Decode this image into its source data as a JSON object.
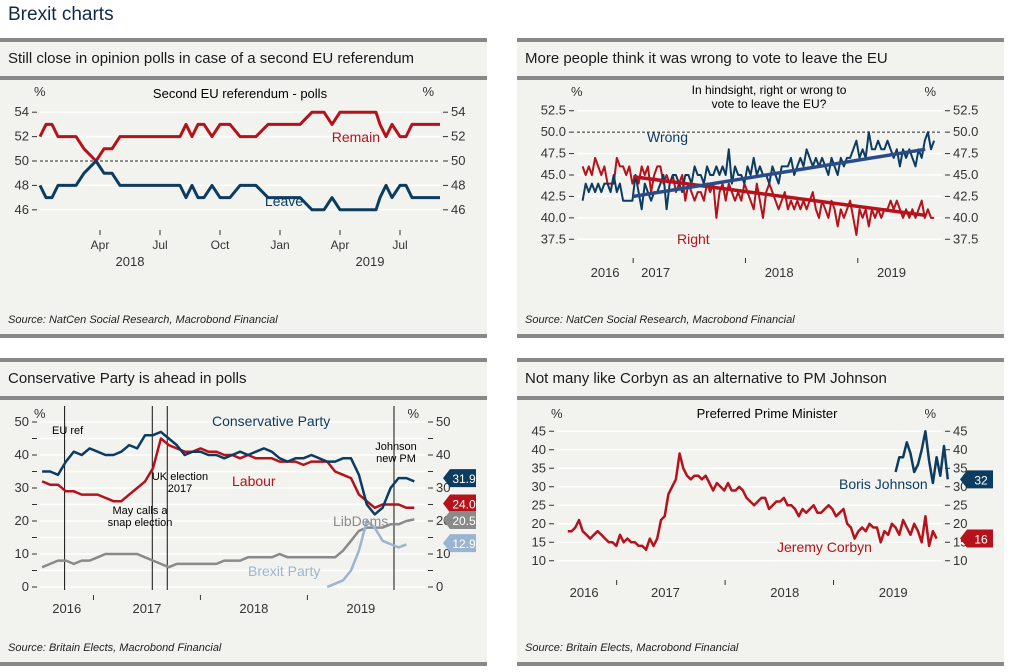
{
  "page": {
    "title": "Brexit charts"
  },
  "colors": {
    "navy": "#0d3c61",
    "red": "#b5121b",
    "gray": "#8a8a8a",
    "lightblue": "#9ab4d1",
    "bg": "#f2f2ef"
  },
  "panels": [
    {
      "heading": "Still close in opinion polls in case of a second EU referendum",
      "source": "Source: NatCen Social Research, Macrobond Financial"
    },
    {
      "heading": "More people think it was wrong to vote to leave the EU",
      "source": "Source: NatCen Social Research, Macrobond Financial"
    },
    {
      "heading": "Conservative Party is ahead in polls",
      "source": "Source: Britain Elects, Macrobond Financial"
    },
    {
      "heading": "Not many like Corbyn as an alternative to PM Johnson",
      "source": "Source: Britain Elects, Macrobond Financial"
    }
  ],
  "chart_data": [
    {
      "type": "line",
      "title": "Second EU referendum - polls",
      "ylabel_left": "%",
      "ylabel_right": "%",
      "ylim": [
        45,
        55
      ],
      "yticks": [
        46,
        48,
        50,
        52,
        54
      ],
      "xlim": [
        0,
        20
      ],
      "xticks": [
        {
          "x": 3,
          "label": "Apr"
        },
        {
          "x": 6,
          "label": "Jul"
        },
        {
          "x": 9,
          "label": "Oct"
        },
        {
          "x": 12,
          "label": "Jan"
        },
        {
          "x": 15,
          "label": "Apr"
        },
        {
          "x": 18,
          "label": "Jul"
        }
      ],
      "year_labels": [
        {
          "x": 4.5,
          "label": "2018"
        },
        {
          "x": 16.5,
          "label": "2019"
        }
      ],
      "reference_line": 50,
      "series": [
        {
          "name": "Remain",
          "color": "#b5121b",
          "x": [
            0,
            0.3,
            0.6,
            0.9,
            1.2,
            1.8,
            2.2,
            2.8,
            3.2,
            3.6,
            4.0,
            4.5,
            5,
            6,
            7,
            7.3,
            7.6,
            7.9,
            8.2,
            8.6,
            9,
            9.5,
            10,
            10.8,
            11.4,
            12,
            12.6,
            13,
            13.6,
            14.2,
            14.6,
            15,
            15.6,
            16.2,
            16.8,
            17,
            17.3,
            17.6,
            18,
            18.3,
            18.6,
            19,
            19.5,
            20
          ],
          "values": [
            52,
            53,
            53,
            52,
            52,
            52,
            51,
            50,
            51,
            51,
            52,
            52,
            52,
            52,
            52,
            53,
            52,
            53,
            53,
            52,
            53,
            53,
            52,
            52,
            53,
            53,
            53,
            53,
            54,
            54,
            53,
            54,
            54,
            54,
            54,
            53,
            52,
            53,
            52,
            52,
            53,
            53,
            53,
            53
          ]
        },
        {
          "name": "Leave",
          "color": "#0d3c61",
          "x": [
            0,
            0.3,
            0.6,
            0.9,
            1.2,
            1.8,
            2.2,
            2.8,
            3.2,
            3.6,
            4.0,
            4.5,
            5,
            6,
            7,
            7.3,
            7.6,
            7.9,
            8.2,
            8.6,
            9,
            9.5,
            10,
            10.8,
            11.4,
            12,
            12.6,
            13,
            13.6,
            14.2,
            14.6,
            15,
            15.6,
            16.2,
            16.8,
            17,
            17.3,
            17.6,
            18,
            18.3,
            18.6,
            19,
            19.5,
            20
          ],
          "values": [
            48,
            47,
            47,
            48,
            48,
            48,
            49,
            50,
            49,
            49,
            48,
            48,
            48,
            48,
            48,
            47,
            48,
            47,
            47,
            48,
            47,
            47,
            48,
            48,
            47,
            47,
            47,
            47,
            46,
            46,
            47,
            46,
            46,
            46,
            46,
            47,
            48,
            47,
            48,
            48,
            47,
            47,
            47,
            47
          ]
        }
      ]
    },
    {
      "type": "line",
      "title": "In hindsight, right or wrong to vote to leave the EU?",
      "ylabel_left": "%",
      "ylabel_right": "%",
      "ylim": [
        36.25,
        53.75
      ],
      "yticks": [
        37.5,
        40.0,
        42.5,
        45.0,
        47.5,
        50.0,
        52.5
      ],
      "xlim": [
        2016.5,
        2019.75
      ],
      "xticks": [
        2017.0,
        2018.0,
        2019.0
      ],
      "year_labels": [
        {
          "x": 2016.75,
          "label": "2016"
        },
        {
          "x": 2017.2,
          "label": "2017"
        },
        {
          "x": 2018.3,
          "label": "2018"
        },
        {
          "x": 2019.3,
          "label": "2019"
        }
      ],
      "reference_line": 50.0,
      "series": [
        {
          "name": "Wrong",
          "color": "#0d3c61",
          "values": [
            42,
            44,
            43,
            44,
            43,
            44,
            43,
            44,
            44,
            43,
            45,
            43,
            44,
            42,
            42,
            42,
            42,
            45,
            43,
            41,
            44,
            43,
            42,
            43,
            43,
            44,
            45,
            41,
            44,
            45,
            45,
            44,
            43,
            45,
            45,
            44,
            46,
            45,
            45,
            44,
            46,
            45,
            45,
            46,
            45,
            46,
            45,
            48,
            44,
            46,
            45,
            45,
            44,
            46,
            45,
            47,
            45,
            46,
            45,
            45,
            44,
            46,
            45,
            44,
            46,
            46,
            46,
            47,
            45,
            46,
            47,
            46,
            48,
            47,
            46,
            47,
            46,
            47,
            46,
            45,
            47,
            46,
            45,
            47,
            46,
            47,
            47,
            48,
            49,
            47,
            48,
            47,
            50,
            48,
            48,
            49,
            48,
            48,
            49,
            48,
            47,
            48,
            46,
            48,
            47,
            48,
            47,
            46,
            48,
            47,
            49,
            50,
            48,
            49
          ]
        },
        {
          "name": "Right",
          "color": "#b5121b",
          "values": [
            46,
            45,
            46,
            45,
            47,
            46,
            45,
            46,
            44,
            44,
            44,
            47,
            46,
            46,
            45,
            46,
            44,
            45,
            44,
            46,
            45,
            46,
            43,
            45,
            46,
            46,
            44,
            45,
            44,
            45,
            43,
            44,
            45,
            42,
            44,
            43,
            42,
            43,
            43,
            42,
            44,
            43,
            44,
            40,
            43,
            44,
            42,
            44,
            43,
            42,
            43,
            42,
            44,
            43,
            42,
            41,
            44,
            42,
            40,
            43,
            44,
            43,
            42,
            41,
            42,
            43,
            41,
            42,
            41,
            42,
            41,
            42,
            41,
            42,
            43,
            41,
            40,
            42,
            41,
            40,
            42,
            41,
            39,
            41,
            40,
            41,
            42,
            40,
            38,
            41,
            40,
            41,
            39,
            41,
            40,
            41,
            40,
            41,
            41,
            42,
            41,
            42,
            41,
            40,
            41,
            40,
            41,
            40,
            41,
            42,
            40,
            41,
            40,
            40
          ]
        },
        {
          "name": "Wrong trend",
          "color": "#2a4a8a",
          "x": [
            2017.0,
            2019.6
          ],
          "values": [
            42.5,
            48.0
          ]
        },
        {
          "name": "Right trend",
          "color": "#b5121b",
          "x": [
            2017.0,
            2019.6
          ],
          "values": [
            44.8,
            40.3
          ]
        }
      ]
    },
    {
      "type": "line",
      "ylabel_left": "%",
      "ylabel_right": "%",
      "ylim": [
        0,
        50
      ],
      "yticks": [
        0,
        10,
        20,
        30,
        40,
        50
      ],
      "xlim": [
        2016.25,
        2019.85
      ],
      "xticks": [
        2016.75,
        2017.75,
        2018.75
      ],
      "year_labels": [
        {
          "x": 2016.5,
          "label": "2016"
        },
        {
          "x": 2017.25,
          "label": "2017"
        },
        {
          "x": 2018.25,
          "label": "2018"
        },
        {
          "x": 2019.25,
          "label": "2019"
        }
      ],
      "events": [
        {
          "x": 2016.48,
          "label": "EU ref"
        },
        {
          "x": 2017.3,
          "label": "May calls a snap election"
        },
        {
          "x": 2017.44,
          "label": "UK election 2017"
        },
        {
          "x": 2019.56,
          "label": "Johnson new PM"
        }
      ],
      "series": [
        {
          "name": "Conservative Party",
          "color": "#0d3c61",
          "last": "31.9",
          "values": [
            35,
            35,
            34,
            38,
            41,
            40,
            42,
            41,
            40,
            40,
            41,
            43,
            42,
            46,
            46,
            47,
            45,
            43,
            40,
            41,
            41,
            40,
            40,
            39,
            40,
            41,
            40,
            41,
            42,
            41,
            39,
            38,
            39,
            39,
            40,
            39,
            38,
            38,
            39,
            39,
            34,
            25,
            22,
            24,
            30,
            33,
            33,
            32
          ]
        },
        {
          "name": "Labour",
          "color": "#b5121b",
          "last": "24.0",
          "values": [
            32,
            31,
            31,
            29,
            29,
            28,
            28,
            28,
            27,
            26,
            26,
            28,
            30,
            32,
            36,
            45,
            43,
            42,
            41,
            41,
            42,
            41,
            41,
            40,
            40,
            39,
            40,
            39,
            39,
            39,
            38,
            38,
            38,
            37,
            38,
            38,
            38,
            35,
            34,
            33,
            28,
            26,
            24,
            25,
            25,
            25,
            24,
            24
          ]
        },
        {
          "name": "LibDems",
          "color": "#8a8a8a",
          "last": "20.5",
          "values": [
            6,
            7,
            8,
            8,
            7,
            8,
            8,
            9,
            10,
            10,
            10,
            10,
            10,
            9,
            8,
            7,
            6,
            7,
            7,
            7,
            7,
            7,
            7,
            8,
            8,
            8,
            9,
            9,
            9,
            9,
            10,
            9,
            9,
            9,
            9,
            9,
            9,
            9,
            11,
            14,
            17,
            18,
            18,
            18,
            19,
            19,
            20,
            20.5
          ]
        },
        {
          "name": "Brexit Party",
          "color": "#9ab4d1",
          "last": "12.9",
          "startIndex": 36,
          "values": [
            0,
            1,
            2,
            5,
            11,
            20,
            18,
            14,
            13,
            12,
            12.9
          ]
        }
      ]
    },
    {
      "type": "line",
      "title": "Preferred Prime Minister",
      "ylabel_left": "%",
      "ylabel_right": "%",
      "ylim": [
        7.5,
        47.5
      ],
      "yticks": [
        10,
        15,
        20,
        25,
        30,
        35,
        40,
        45
      ],
      "xlim": [
        2016.2,
        2019.75
      ],
      "xticks": [
        2016.75,
        2017.75,
        2018.75
      ],
      "year_labels": [
        {
          "x": 2016.45,
          "label": "2016"
        },
        {
          "x": 2017.2,
          "label": "2017"
        },
        {
          "x": 2018.3,
          "label": "2018"
        },
        {
          "x": 2019.3,
          "label": "2019"
        }
      ],
      "series": [
        {
          "name": "Jeremy Corbyn",
          "color": "#b5121b",
          "last": "16",
          "values": [
            18,
            18,
            19,
            21,
            18,
            17,
            16,
            17,
            18,
            17,
            16,
            15,
            15,
            14,
            17,
            15,
            16,
            15,
            15,
            14,
            14,
            13,
            16,
            14,
            16,
            21,
            22,
            28,
            30,
            32,
            39,
            35,
            33,
            32,
            33,
            33,
            32,
            33,
            31,
            29,
            31,
            30,
            29,
            31,
            29,
            29,
            30,
            29,
            27,
            26,
            25,
            26,
            27,
            27,
            24,
            25,
            26,
            26,
            27,
            25,
            25,
            24,
            22,
            24,
            23,
            24,
            25,
            23,
            23,
            24,
            25,
            24,
            22,
            23,
            24,
            20,
            19,
            16,
            18,
            19,
            18,
            20,
            19,
            19,
            15,
            18,
            17,
            20,
            19,
            17,
            21,
            19,
            17,
            20,
            18,
            15,
            22,
            14,
            18,
            16
          ]
        },
        {
          "name": "Boris Johnson",
          "color": "#0d3c61",
          "last": "32",
          "startIndex": 88,
          "values": [
            34,
            38,
            38,
            42,
            39,
            34,
            36,
            40,
            45,
            37,
            31,
            38,
            33,
            41,
            32
          ]
        }
      ]
    }
  ]
}
